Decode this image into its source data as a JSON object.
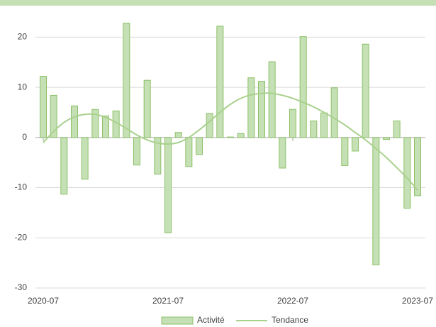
{
  "chart_data": {
    "type": "bar",
    "categories": [
      "2020-07",
      null,
      null,
      null,
      null,
      null,
      null,
      null,
      null,
      null,
      null,
      null,
      "2021-07",
      null,
      null,
      null,
      null,
      null,
      null,
      null,
      null,
      null,
      null,
      null,
      "2022-07",
      null,
      null,
      null,
      null,
      null,
      null,
      null,
      null,
      null,
      null,
      null,
      "2023-07"
    ],
    "series": [
      {
        "name": "Activité",
        "type": "bar",
        "color": "#c5e0b4",
        "stroke": "#8cc068",
        "values": [
          12.2,
          8.4,
          -11.3,
          6.3,
          -8.3,
          5.6,
          4.3,
          5.3,
          22.8,
          -5.5,
          11.4,
          -7.3,
          -19.0,
          1.0,
          -5.8,
          -3.4,
          4.8,
          22.2,
          0.1,
          0.8,
          11.9,
          11.2,
          15.1,
          -6.1,
          5.6,
          20.1,
          3.3,
          4.9,
          9.9,
          -5.6,
          -2.7,
          18.6,
          -25.4,
          -0.4,
          3.3,
          -14.1,
          -11.6
        ]
      },
      {
        "name": "Tendance",
        "type": "line",
        "color": "#a9d18e",
        "values": [
          -1,
          1.2,
          3.0,
          4.1,
          4.6,
          4.6,
          4.0,
          3.0,
          1.8,
          0.5,
          -0.5,
          -1.1,
          -1.3,
          -1.0,
          0,
          1.5,
          3.2,
          5.0,
          6.6,
          7.8,
          8.5,
          8.8,
          8.8,
          8.4,
          7.8,
          7.0,
          6.1,
          5.0,
          3.8,
          2.5,
          1.0,
          -0.5,
          -2.2,
          -4.0,
          -6.0,
          -8.1,
          -10.5
        ]
      }
    ],
    "ylim": [
      -30,
      25
    ],
    "yticks": [
      -30,
      -20,
      -10,
      0,
      10,
      20
    ],
    "grid": true,
    "legend": "bottom"
  }
}
